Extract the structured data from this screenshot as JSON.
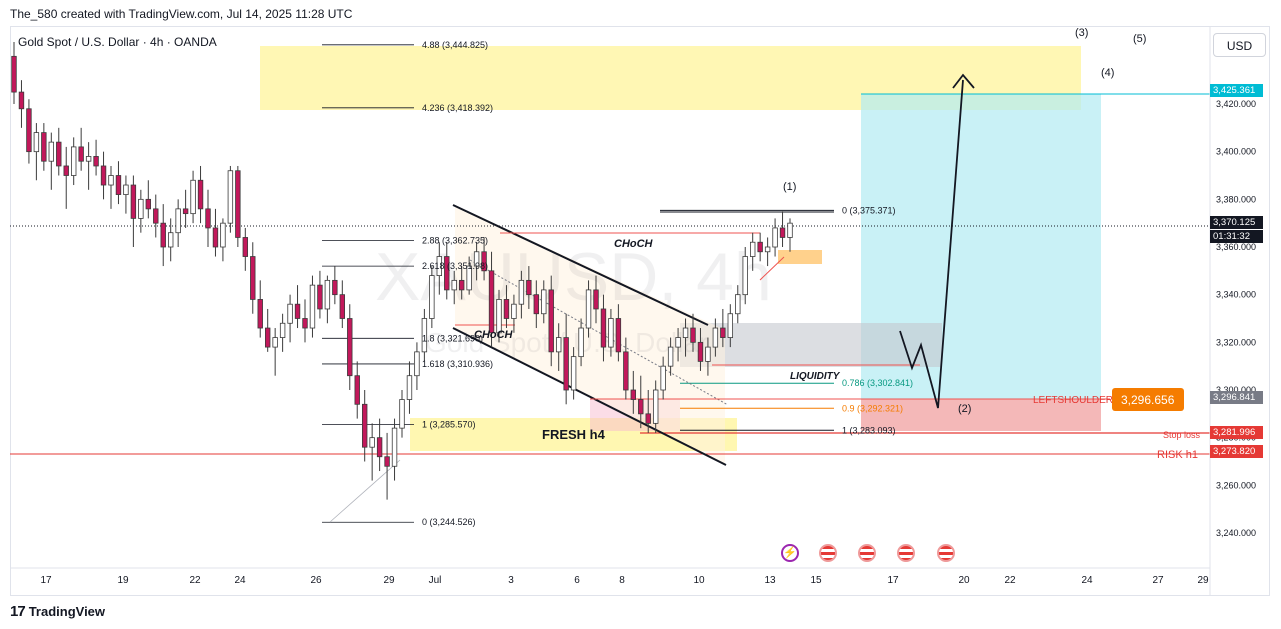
{
  "header": {
    "created_by": "The_580 created with TradingView.com, Jul 14, 2025 11:28 UTC"
  },
  "symbol": {
    "title": "Gold Spot / U.S. Dollar · 4h · OANDA",
    "watermark_line1": "XAUUSD, 4h",
    "watermark_line2": "Gold Spot / U.S. Dollar"
  },
  "toolbar": {
    "currency": "USD"
  },
  "footer": {
    "brand": "TradingView",
    "mark": "17"
  },
  "colors": {
    "bull": "#ef5350",
    "bear": "#ef5350",
    "candle_body": "#c2185b",
    "target_zone": "#fff176",
    "long_profit": "#b2ebf2",
    "long_loss": "#ef9a9a",
    "grey_zone": "#c5c8cf",
    "fresh_zone": "#fff59d",
    "risk_line": "#e53935"
  },
  "chart_data": {
    "type": "candlestick",
    "title": "Gold Spot / U.S. Dollar · 4h · OANDA",
    "ylim": [
      3230,
      3455
    ],
    "y_ticks": [
      "3,240.000",
      "3,260.000",
      "3,280.000",
      "3,300.000",
      "3,320.000",
      "3,340.000",
      "3,360.000",
      "3,380.000",
      "3,400.000",
      "3,420.000"
    ],
    "x_ticks": [
      "17",
      "19",
      "22",
      "24",
      "26",
      "29",
      "Jul",
      "3",
      "6",
      "8",
      "10",
      "13",
      "15",
      "17",
      "20",
      "22",
      "24",
      "27",
      "29"
    ],
    "fib_levels": [
      {
        "label": "0 (3,375.371)",
        "price": 3375.371
      },
      {
        "label": "0.786 (3,302.841)",
        "price": 3302.841
      },
      {
        "label": "0.9 (3,292.321)",
        "price": 3292.321
      },
      {
        "label": "1 (3,283.093)",
        "price": 3283.093
      }
    ],
    "fib_extension": [
      {
        "label": "4.88 (3,444.825)",
        "price": 3444.825
      },
      {
        "label": "4.236 (3,418.392)",
        "price": 3418.392
      },
      {
        "label": "2.88 (3,362.735)",
        "price": 3362.735
      },
      {
        "label": "2.618 (3,351.98)",
        "price": 3351.98
      },
      {
        "label": "1.8 (3,321.690)",
        "price": 3321.69
      },
      {
        "label": "1.618 (3,310.936)",
        "price": 3310.936
      },
      {
        "label": "1 (3,285.570)",
        "price": 3285.57
      },
      {
        "label": "0 (3,244.526)",
        "price": 3244.526
      }
    ],
    "annotations": {
      "choch_1": "CHoCH",
      "choch_2": "CHoCH",
      "liquidity": "LIQUIDITY",
      "fresh_h4": "FRESH h4",
      "left_shoulder": "LEFTSHOULDER",
      "stop_loss": "Stop loss",
      "risk_h1": "RISK h1",
      "wave_1": "(1)",
      "wave_2": "(2)",
      "wave_3": "(3)",
      "wave_4": "(4)",
      "wave_5": "(5)"
    },
    "price_labels": [
      {
        "text": "3,425.361",
        "price": 3425.361,
        "color": "#00bcd4"
      },
      {
        "text": "3,370.125",
        "price": 3370.125,
        "color": "#131722"
      },
      {
        "text": "01:31:32",
        "price": 3366.0,
        "color": "#131722"
      },
      {
        "text": "3,296.841",
        "price": 3296.841,
        "color": "#787b86"
      },
      {
        "text": "3,281.996",
        "price": 3281.996,
        "color": "#e53935"
      },
      {
        "text": "3,273.820",
        "price": 3273.82,
        "color": "#e53935"
      }
    ],
    "left_shoulder_value": "3,296.656",
    "candles": [
      [
        3440,
        3446,
        3420,
        3425
      ],
      [
        3425,
        3430,
        3410,
        3418
      ],
      [
        3418,
        3422,
        3395,
        3400
      ],
      [
        3400,
        3412,
        3388,
        3408
      ],
      [
        3408,
        3412,
        3392,
        3396
      ],
      [
        3396,
        3408,
        3384,
        3404
      ],
      [
        3404,
        3410,
        3390,
        3394
      ],
      [
        3394,
        3402,
        3376,
        3390
      ],
      [
        3390,
        3406,
        3386,
        3402
      ],
      [
        3402,
        3410,
        3392,
        3396
      ],
      [
        3396,
        3404,
        3384,
        3398
      ],
      [
        3398,
        3405,
        3390,
        3394
      ],
      [
        3394,
        3400,
        3380,
        3386
      ],
      [
        3386,
        3394,
        3376,
        3390
      ],
      [
        3390,
        3396,
        3378,
        3382
      ],
      [
        3382,
        3390,
        3374,
        3386
      ],
      [
        3386,
        3390,
        3360,
        3372
      ],
      [
        3372,
        3384,
        3366,
        3380
      ],
      [
        3380,
        3388,
        3372,
        3376
      ],
      [
        3376,
        3382,
        3364,
        3370
      ],
      [
        3370,
        3378,
        3352,
        3360
      ],
      [
        3360,
        3372,
        3354,
        3366
      ],
      [
        3366,
        3380,
        3360,
        3376
      ],
      [
        3376,
        3384,
        3368,
        3374
      ],
      [
        3374,
        3392,
        3370,
        3388
      ],
      [
        3388,
        3394,
        3370,
        3376
      ],
      [
        3376,
        3384,
        3360,
        3368
      ],
      [
        3368,
        3376,
        3356,
        3360
      ],
      [
        3360,
        3372,
        3354,
        3370
      ],
      [
        3370,
        3394,
        3366,
        3392
      ],
      [
        3392,
        3394,
        3360,
        3364
      ],
      [
        3364,
        3368,
        3350,
        3356
      ],
      [
        3356,
        3362,
        3332,
        3338
      ],
      [
        3338,
        3346,
        3322,
        3326
      ],
      [
        3326,
        3334,
        3316,
        3318
      ],
      [
        3318,
        3326,
        3306,
        3322
      ],
      [
        3322,
        3332,
        3316,
        3328
      ],
      [
        3328,
        3340,
        3320,
        3336
      ],
      [
        3336,
        3344,
        3326,
        3330
      ],
      [
        3330,
        3338,
        3320,
        3326
      ],
      [
        3326,
        3348,
        3322,
        3344
      ],
      [
        3344,
        3350,
        3330,
        3334
      ],
      [
        3334,
        3348,
        3328,
        3346
      ],
      [
        3346,
        3352,
        3336,
        3340
      ],
      [
        3340,
        3346,
        3326,
        3330
      ],
      [
        3330,
        3336,
        3300,
        3306
      ],
      [
        3306,
        3312,
        3288,
        3294
      ],
      [
        3294,
        3300,
        3270,
        3276
      ],
      [
        3276,
        3286,
        3262,
        3280
      ],
      [
        3280,
        3288,
        3266,
        3272
      ],
      [
        3272,
        3282,
        3254,
        3268
      ],
      [
        3268,
        3288,
        3262,
        3284
      ],
      [
        3284,
        3300,
        3280,
        3296
      ],
      [
        3296,
        3312,
        3290,
        3306
      ],
      [
        3306,
        3320,
        3300,
        3316
      ],
      [
        3316,
        3334,
        3312,
        3330
      ],
      [
        3330,
        3352,
        3326,
        3348
      ],
      [
        3348,
        3362,
        3340,
        3356
      ],
      [
        3356,
        3362,
        3338,
        3342
      ],
      [
        3342,
        3350,
        3336,
        3346
      ],
      [
        3346,
        3352,
        3338,
        3342
      ],
      [
        3342,
        3356,
        3340,
        3352
      ],
      [
        3352,
        3362,
        3346,
        3358
      ],
      [
        3358,
        3364,
        3346,
        3350
      ],
      [
        3350,
        3358,
        3318,
        3324
      ],
      [
        3324,
        3342,
        3320,
        3338
      ],
      [
        3338,
        3344,
        3326,
        3330
      ],
      [
        3330,
        3340,
        3324,
        3336
      ],
      [
        3336,
        3350,
        3330,
        3346
      ],
      [
        3346,
        3352,
        3334,
        3340
      ],
      [
        3340,
        3346,
        3326,
        3332
      ],
      [
        3332,
        3346,
        3328,
        3342
      ],
      [
        3342,
        3348,
        3310,
        3316
      ],
      [
        3316,
        3328,
        3308,
        3322
      ],
      [
        3322,
        3332,
        3294,
        3300
      ],
      [
        3300,
        3318,
        3296,
        3314
      ],
      [
        3314,
        3330,
        3310,
        3326
      ],
      [
        3326,
        3346,
        3322,
        3342
      ],
      [
        3342,
        3348,
        3328,
        3334
      ],
      [
        3334,
        3340,
        3312,
        3318
      ],
      [
        3318,
        3334,
        3314,
        3330
      ],
      [
        3330,
        3336,
        3312,
        3316
      ],
      [
        3316,
        3322,
        3296,
        3300
      ],
      [
        3300,
        3308,
        3290,
        3296
      ],
      [
        3296,
        3306,
        3284,
        3290
      ],
      [
        3290,
        3300,
        3282,
        3286
      ],
      [
        3286,
        3304,
        3282,
        3300
      ],
      [
        3300,
        3314,
        3296,
        3310
      ],
      [
        3310,
        3322,
        3306,
        3318
      ],
      [
        3318,
        3326,
        3312,
        3322
      ],
      [
        3322,
        3330,
        3314,
        3326
      ],
      [
        3326,
        3332,
        3316,
        3320
      ],
      [
        3320,
        3326,
        3308,
        3312
      ],
      [
        3312,
        3322,
        3306,
        3318
      ],
      [
        3318,
        3330,
        3314,
        3326
      ],
      [
        3326,
        3334,
        3318,
        3322
      ],
      [
        3322,
        3336,
        3318,
        3332
      ],
      [
        3332,
        3344,
        3328,
        3340
      ],
      [
        3340,
        3360,
        3336,
        3356
      ],
      [
        3356,
        3366,
        3350,
        3362
      ],
      [
        3362,
        3366,
        3354,
        3358
      ],
      [
        3358,
        3364,
        3352,
        3360
      ],
      [
        3360,
        3372,
        3356,
        3368
      ],
      [
        3368,
        3375,
        3360,
        3364
      ],
      [
        3364,
        3372,
        3358,
        3370
      ]
    ]
  }
}
